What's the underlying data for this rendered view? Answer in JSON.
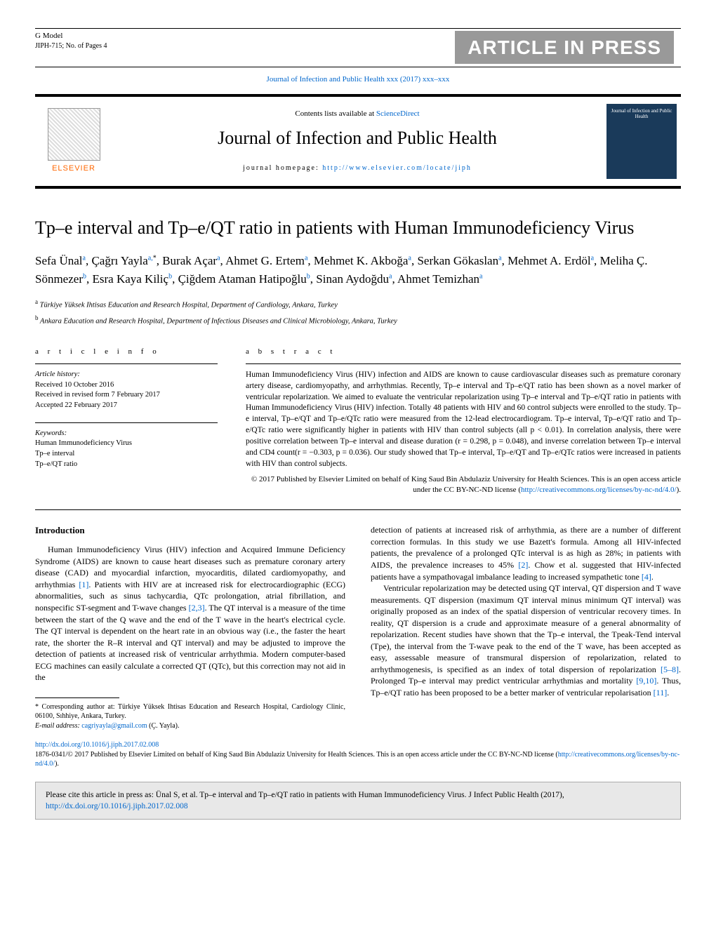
{
  "gmodel": {
    "label": "G Model",
    "ref": "JIPH-715;   No. of Pages 4",
    "banner": "ARTICLE IN PRESS"
  },
  "journal_ref": "Journal of Infection and Public Health xxx (2017) xxx–xxx",
  "header": {
    "contents_prefix": "Contents lists available at ",
    "sciencedirect": "ScienceDirect",
    "journal_title": "Journal of Infection and Public Health",
    "homepage_label": "journal homepage: ",
    "homepage_url": "http://www.elsevier.com/locate/jiph",
    "elsevier": "ELSEVIER",
    "cover_text": "Journal of Infection and Public Health"
  },
  "article": {
    "title": "Tp–e interval and Tp–e/QT ratio in patients with Human Immunodeficiency Virus",
    "authors_html_segments": [
      {
        "name": "Sefa Ünal",
        "sup": "a"
      },
      {
        "name": "Çağrı Yayla",
        "sup": "a,",
        "ast": "*"
      },
      {
        "name": "Burak Açar",
        "sup": "a"
      },
      {
        "name": "Ahmet G. Ertem",
        "sup": "a"
      },
      {
        "name": "Mehmet K. Akboğa",
        "sup": "a"
      },
      {
        "name": "Serkan Gökaslan",
        "sup": "a"
      },
      {
        "name": "Mehmet A. Erdöl",
        "sup": "a"
      },
      {
        "name": "Meliha Ç. Sönmezer",
        "sup": "b"
      },
      {
        "name": "Esra Kaya Kiliç",
        "sup": "b"
      },
      {
        "name": "Çiğdem Ataman Hatipoğlu",
        "sup": "b"
      },
      {
        "name": "Sinan Aydoğdu",
        "sup": "a"
      },
      {
        "name": "Ahmet Temizhan",
        "sup": "a"
      }
    ],
    "affiliations": [
      {
        "sup": "a",
        "text": "Türkiye Yüksek Ihtisas Education and Research Hospital, Department of Cardiology, Ankara, Turkey"
      },
      {
        "sup": "b",
        "text": "Ankara Education and Research Hospital, Department of Infectious Diseases and Clinical Microbiology, Ankara, Turkey"
      }
    ]
  },
  "article_info": {
    "heading": "a r t i c l e   i n f o",
    "history_title": "Article history:",
    "history_lines": [
      "Received 10 October 2016",
      "Received in revised form 7 February 2017",
      "Accepted 22 February 2017"
    ],
    "keywords_title": "Keywords:",
    "keywords": [
      "Human Immunodeficiency Virus",
      "Tp–e interval",
      "Tp–e/QT ratio"
    ]
  },
  "abstract": {
    "heading": "a b s t r a c t",
    "text": "Human Immunodeficiency Virus (HIV) infection and AIDS are known to cause cardiovascular diseases such as premature coronary artery disease, cardiomyopathy, and arrhythmias. Recently, Tp–e interval and Tp–e/QT ratio has been shown as a novel marker of ventricular repolarization. We aimed to evaluate the ventricular repolarization using Tp–e interval and Tp–e/QT ratio in patients with Human Immunodeficiency Virus (HIV) infection. Totally 48 patients with HIV and 60 control subjects were enrolled to the study. Tp–e interval, Tp–e/QT and Tp–e/QTc ratio were measured from the 12-lead electrocardiogram. Tp–e interval, Tp–e/QT ratio and Tp–e/QTc ratio were significantly higher in patients with HIV than control subjects (all p < 0.01). In correlation analysis, there were positive correlation between Tp–e interval and disease duration (r = 0.298, p = 0.048), and inverse correlation between Tp–e interval and CD4 count(r = −0.303, p = 0.036). Our study showed that Tp–e interval, Tp–e/QT and Tp–e/QTc ratios were increased in patients with HIV than control subjects.",
    "copyright": "© 2017 Published by Elsevier Limited on behalf of King Saud Bin Abdulaziz University for Health Sciences. This is an open access article under the CC BY-NC-ND license (",
    "cc_url": "http://creativecommons.org/licenses/by-nc-nd/4.0/",
    "cc_close": ")."
  },
  "body": {
    "intro_heading": "Introduction",
    "para1": "Human Immunodeficiency Virus (HIV) infection and Acquired Immune Deficiency Syndrome (AIDS) are known to cause heart diseases such as premature coronary artery disease (CAD) and myocardial infarction, myocarditis, dilated cardiomyopathy, and arrhythmias ",
    "ref1": "[1]",
    "para1b": ". Patients with HIV are at increased risk for electrocardiographic (ECG) abnormalities, such as sinus tachycardia, QTc prolongation, atrial fibrillation, and nonspecific ST-segment and T-wave changes ",
    "ref23": "[2,3]",
    "para1c": ". The QT interval is a measure of the time between the start of the Q wave and the end of the T wave in the heart's electrical cycle. The QT interval is dependent on the heart rate in an obvious way (i.e., the faster the heart rate, the shorter the R–R interval and QT interval) and may be adjusted to improve the detection of patients at increased risk of ventricular arrhythmia. Modern computer-based ECG machines can easily calculate a corrected QT (QTc), but this correction may not aid in the",
    "para2a": "detection of patients at increased risk of arrhythmia, as there are a number of different correction formulas. In this study we use Bazett's formula. Among all HIV-infected patients, the prevalence of a prolonged QTc interval is as high as 28%; in patients with AIDS, the prevalence increases to 45% ",
    "ref2": "[2]",
    "para2b": ". Chow et al. suggested that HIV-infected patients have a sympathovagal imbalance leading to increased sympathetic tone ",
    "ref4": "[4]",
    "para2c": ".",
    "para3a": "Ventricular repolarization may be detected using QT interval, QT dispersion and T wave measurements. QT dispersion (maximum QT interval minus minimum QT interval) was originally proposed as an index of the spatial dispersion of ventricular recovery times. In reality, QT dispersion is a crude and approximate measure of a general abnormality of repolarization. Recent studies have shown that the Tp–e interval, the Tpeak-Tend interval (Tpe), the interval from the T-wave peak to the end of the T wave, has been accepted as easy, assessable measure of transmural dispersion of repolarization, related to arrhythmogenesis, is specified as an index of total dispersion of repolarization ",
    "ref58": "[5–8]",
    "para3b": ". Prolonged Tp–e interval may predict ventricular arrhythmias and mortality ",
    "ref910": "[9,10]",
    "para3c": ". Thus, Tp–e/QT ratio has been proposed to be a better marker of ventricular repolarisation ",
    "ref11": "[11]",
    "para3d": "."
  },
  "footnote": {
    "corr": "* Corresponding author at: Türkiye Yüksek Ihtisas Education and Research Hospital, Cardiology Clinic, 06100, Sıhhiye, Ankara, Turkey.",
    "email_label": "E-mail address: ",
    "email": "cagriyayla@gmail.com",
    "email_suffix": " (Ç. Yayla)."
  },
  "doi": {
    "url": "http://dx.doi.org/10.1016/j.jiph.2017.02.008",
    "line2a": "1876-0341/© 2017 Published by Elsevier Limited on behalf of King Saud Bin Abdulaziz University for Health Sciences. This is an open access article under the CC BY-NC-ND license (",
    "cc_url": "http://creativecommons.org/licenses/by-nc-nd/4.0/",
    "line2b": ")."
  },
  "citebox": {
    "text_a": "Please cite this article in press as: Ünal S, et al. Tp–e interval and Tp–e/QT ratio in patients with Human Immunodeficiency Virus. J Infect Public Health (2017), ",
    "url": "http://dx.doi.org/10.1016/j.jiph.2017.02.008"
  },
  "colors": {
    "link": "#0066cc",
    "banner_bg": "#999999",
    "elsevier_orange": "#ff6600",
    "citebox_bg": "#e8e8e8",
    "cover_bg": "#1a3a5a"
  }
}
